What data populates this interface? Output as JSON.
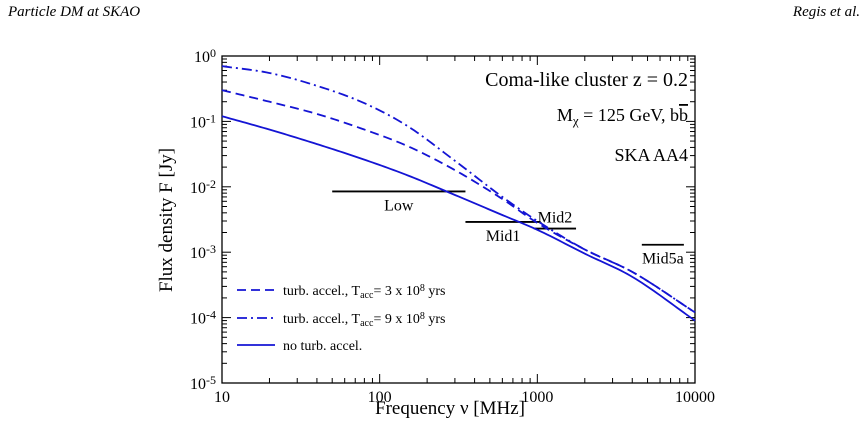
{
  "header": {
    "left": "Particle DM at SKAO",
    "right": "Regis et al."
  },
  "chart_data": {
    "type": "line",
    "xlabel": "Frequency   ν [MHz]",
    "ylabel": "Flux density    F [Jy]",
    "xscale": "log",
    "yscale": "log",
    "xlim": [
      10,
      10000
    ],
    "ylim": [
      1e-05,
      1
    ],
    "x_ticks": [
      {
        "value": 10,
        "label": "10"
      },
      {
        "value": 100,
        "label": "100"
      },
      {
        "value": 1000,
        "label": "1000"
      },
      {
        "value": 10000,
        "label": "10000"
      }
    ],
    "y_ticks": [
      {
        "value": 1,
        "base": "10",
        "exp": "0"
      },
      {
        "value": 0.1,
        "base": "10",
        "exp": "-1"
      },
      {
        "value": 0.01,
        "base": "10",
        "exp": "-2"
      },
      {
        "value": 0.001,
        "base": "10",
        "exp": "-3"
      },
      {
        "value": 0.0001,
        "base": "10",
        "exp": "-4"
      },
      {
        "value": 1e-05,
        "base": "10",
        "exp": "-5"
      }
    ],
    "annotations": {
      "line1": "Coma-like cluster z = 0.2",
      "line2_main": "M",
      "line2_sub": "χ",
      "line2_rest": " = 125 GeV,  b",
      "line2_bbar": "b",
      "line3": "SKA AA4"
    },
    "series": [
      {
        "style": "dashed",
        "color": "#1414d4",
        "legend_pre": "turb. accel., T",
        "legend_sub": "acc",
        "legend_mid": "= 3 x 10",
        "legend_sup": "8",
        "legend_post": " yrs",
        "x": [
          10,
          20,
          40,
          80,
          150,
          300,
          600,
          1000,
          2000,
          4000,
          10000
        ],
        "y": [
          0.3,
          0.2,
          0.13,
          0.075,
          0.042,
          0.018,
          0.0065,
          0.0028,
          0.0011,
          0.0005,
          0.00012
        ]
      },
      {
        "style": "dashdot",
        "color": "#1414d4",
        "legend_pre": "turb. accel., T",
        "legend_sub": "acc",
        "legend_mid": "= 9 x 10",
        "legend_sup": "8",
        "legend_post": " yrs",
        "x": [
          10,
          20,
          40,
          80,
          150,
          300,
          600,
          1000,
          2000,
          4000,
          10000
        ],
        "y": [
          0.7,
          0.55,
          0.35,
          0.19,
          0.085,
          0.025,
          0.007,
          0.003,
          0.0011,
          0.0005,
          0.00012
        ]
      },
      {
        "style": "solid",
        "color": "#1414d4",
        "legend_pre": "no turb. accel.",
        "legend_sub": "",
        "legend_mid": "",
        "legend_sup": "",
        "legend_post": "",
        "x": [
          10,
          20,
          40,
          80,
          150,
          300,
          600,
          1000,
          2000,
          4000,
          10000
        ],
        "y": [
          0.12,
          0.075,
          0.045,
          0.026,
          0.015,
          0.0075,
          0.0037,
          0.0022,
          0.00095,
          0.00042,
          9e-05
        ]
      }
    ],
    "sensitivity_bands": [
      {
        "label": "Low",
        "x_min": 50,
        "x_max": 350,
        "y": 0.0085,
        "label_pos": "below"
      },
      {
        "label": "Mid1",
        "x_min": 350,
        "x_max": 1050,
        "y": 0.0029,
        "label_pos": "below"
      },
      {
        "label": "Mid2",
        "x_min": 950,
        "x_max": 1760,
        "y": 0.0023,
        "label_pos": "above"
      },
      {
        "label": "Mid5a",
        "x_min": 4600,
        "x_max": 8500,
        "y": 0.0013,
        "label_pos": "below"
      }
    ]
  }
}
